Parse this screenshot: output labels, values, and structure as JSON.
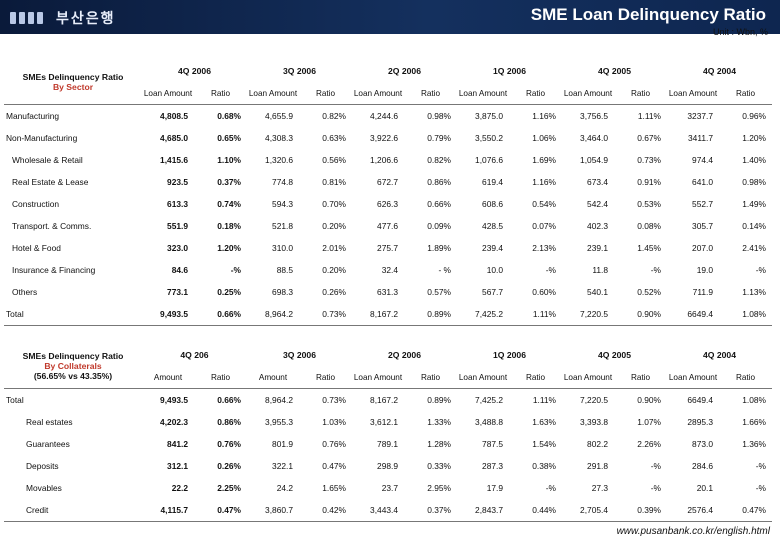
{
  "header": {
    "logo_text": "부산은행",
    "title": "SME Loan Delinquency Ratio",
    "unit": "Unit : Wbn, %"
  },
  "footer": {
    "url": "www.pusanbank.co.kr/english.html"
  },
  "table1": {
    "corner": [
      "SMEs Delinquency Ratio",
      "By Sector"
    ],
    "periods": [
      "4Q 2006",
      "3Q 2006",
      "2Q 2006",
      "1Q 2006",
      "4Q 2005",
      "4Q 2004"
    ],
    "subheaders": [
      "Loan Amount",
      "Ratio"
    ],
    "rows": [
      {
        "label": "Manufacturing",
        "vals": [
          "4,808.5",
          "0.68%",
          "4,655.9",
          "0.82%",
          "4,244.6",
          "0.98%",
          "3,875.0",
          "1.16%",
          "3,756.5",
          "1.11%",
          "3237.7",
          "0.96%"
        ]
      },
      {
        "label": "Non-Manufacturing",
        "vals": [
          "4,685.0",
          "0.65%",
          "4,308.3",
          "0.63%",
          "3,922.6",
          "0.79%",
          "3,550.2",
          "1.06%",
          "3,464.0",
          "0.67%",
          "3411.7",
          "1.20%"
        ]
      },
      {
        "label": "Wholesale & Retail",
        "vals": [
          "1,415.6",
          "1.10%",
          "1,320.6",
          "0.56%",
          "1,206.6",
          "0.82%",
          "1,076.6",
          "1.69%",
          "1,054.9",
          "0.73%",
          "974.4",
          "1.40%"
        ]
      },
      {
        "label": "Real Estate & Lease",
        "vals": [
          "923.5",
          "0.37%",
          "774.8",
          "0.81%",
          "672.7",
          "0.86%",
          "619.4",
          "1.16%",
          "673.4",
          "0.91%",
          "641.0",
          "0.98%"
        ]
      },
      {
        "label": "Construction",
        "vals": [
          "613.3",
          "0.74%",
          "594.3",
          "0.70%",
          "626.3",
          "0.66%",
          "608.6",
          "0.54%",
          "542.4",
          "0.53%",
          "552.7",
          "1.49%"
        ]
      },
      {
        "label": "Transport. & Comms.",
        "vals": [
          "551.9",
          "0.18%",
          "521.8",
          "0.20%",
          "477.6",
          "0.09%",
          "428.5",
          "0.07%",
          "402.3",
          "0.08%",
          "305.7",
          "0.14%"
        ]
      },
      {
        "label": "Hotel & Food",
        "vals": [
          "323.0",
          "1.20%",
          "310.0",
          "2.01%",
          "275.7",
          "1.89%",
          "239.4",
          "2.13%",
          "239.1",
          "1.45%",
          "207.0",
          "2.41%"
        ]
      },
      {
        "label": "Insurance & Financing",
        "vals": [
          "84.6",
          "-%",
          "88.5",
          "0.20%",
          "32.4",
          "- %",
          "10.0",
          "-%",
          "11.8",
          "-%",
          "19.0",
          "-%"
        ]
      },
      {
        "label": "Others",
        "vals": [
          "773.1",
          "0.25%",
          "698.3",
          "0.26%",
          "631.3",
          "0.57%",
          "567.7",
          "0.60%",
          "540.1",
          "0.52%",
          "711.9",
          "1.13%"
        ]
      },
      {
        "label": "Total",
        "vals": [
          "9,493.5",
          "0.66%",
          "8,964.2",
          "0.73%",
          "8,167.2",
          "0.89%",
          "7,425.2",
          "1.11%",
          "7,220.5",
          "0.90%",
          "6649.4",
          "1.08%"
        ]
      }
    ]
  },
  "table2": {
    "corner": [
      "SMEs Delinquency Ratio",
      "By Collaterals",
      "(56.65% vs 43.35%)"
    ],
    "periods": [
      "4Q 206",
      "3Q 2006",
      "2Q 2006",
      "1Q 2006",
      "4Q 2005",
      "4Q 2004"
    ],
    "subheaders": [
      [
        "Amount",
        "Ratio"
      ],
      [
        "Amount",
        "Ratio"
      ],
      [
        "Loan Amount",
        "Ratio"
      ],
      [
        "Loan Amount",
        "Ratio"
      ],
      [
        "Loan Amount",
        "Ratio"
      ],
      [
        "Loan Amount",
        "Ratio"
      ]
    ],
    "rows": [
      {
        "label": "Total",
        "vals": [
          "9,493.5",
          "0.66%",
          "8,964.2",
          "0.73%",
          "8,167.2",
          "0.89%",
          "7,425.2",
          "1.11%",
          "7,220.5",
          "0.90%",
          "6649.4",
          "1.08%"
        ]
      },
      {
        "label": "Real estates",
        "vals": [
          "4,202.3",
          "0.86%",
          "3,955.3",
          "1.03%",
          "3,612.1",
          "1.33%",
          "3,488.8",
          "1.63%",
          "3,393.8",
          "1.07%",
          "2895.3",
          "1.66%"
        ]
      },
      {
        "label": "Guarantees",
        "vals": [
          "841.2",
          "0.76%",
          "801.9",
          "0.76%",
          "789.1",
          "1.28%",
          "787.5",
          "1.54%",
          "802.2",
          "2.26%",
          "873.0",
          "1.36%"
        ]
      },
      {
        "label": "Deposits",
        "vals": [
          "312.1",
          "0.26%",
          "322.1",
          "0.47%",
          "298.9",
          "0.33%",
          "287.3",
          "0.38%",
          "291.8",
          "-%",
          "284.6",
          "-%"
        ]
      },
      {
        "label": "Movables",
        "vals": [
          "22.2",
          "2.25%",
          "24.2",
          "1.65%",
          "23.7",
          "2.95%",
          "17.9",
          "-%",
          "27.3",
          "-%",
          "20.1",
          "-%"
        ]
      },
      {
        "label": "Credit",
        "vals": [
          "4,115.7",
          "0.47%",
          "3,860.7",
          "0.42%",
          "3,443.4",
          "0.37%",
          "2,843.7",
          "0.44%",
          "2,705.4",
          "0.39%",
          "2576.4",
          "0.47%"
        ]
      }
    ]
  }
}
